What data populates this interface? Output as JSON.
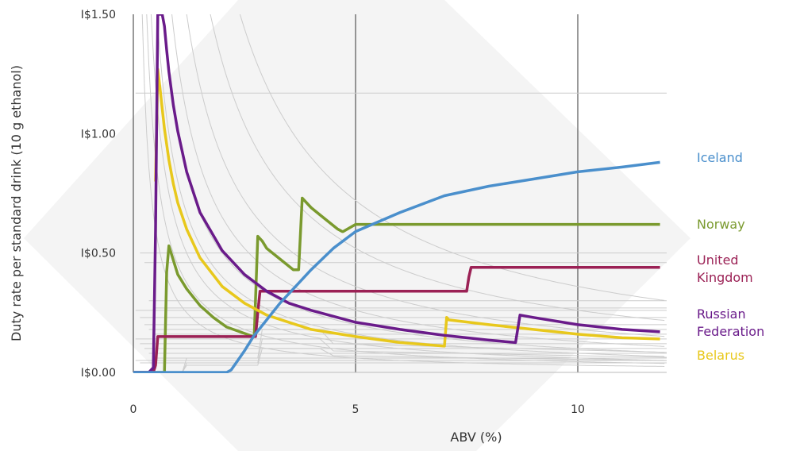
{
  "chart_data": {
    "type": "line",
    "xlabel": "ABV (%)",
    "ylabel": "Duty rate per standard drink (10 g ethanol)",
    "xlim": [
      0,
      12
    ],
    "ylim": [
      0,
      1.5
    ],
    "x_ticks": [
      {
        "value": 0,
        "label": "0"
      },
      {
        "value": 5,
        "label": "5"
      },
      {
        "value": 10,
        "label": "10"
      }
    ],
    "y_ticks": [
      {
        "value": 0,
        "label": "I$0.00"
      },
      {
        "value": 0.5,
        "label": "I$0.50"
      },
      {
        "value": 1.0,
        "label": "I$1.00"
      },
      {
        "value": 1.5,
        "label": "I$1.50"
      }
    ],
    "grid": true,
    "background_series_color": "#cccccc",
    "background_constants": [
      0.3,
      0.45,
      0.6,
      0.8,
      1.0,
      1.3,
      1.8,
      2.6,
      3.6
    ],
    "background_flat_levels": [
      1.17,
      0.5,
      0.46,
      0.3,
      0.27,
      0.26,
      0.23,
      0.2,
      0.18,
      0.16,
      0.14,
      0.12,
      0.1,
      0.08,
      0.06,
      0.05,
      0.04
    ],
    "series": [
      {
        "name": "Iceland",
        "label_lines": [
          "Iceland"
        ],
        "color": "#4a8fcc",
        "x": [
          0,
          2.1,
          2.2,
          2.35,
          2.5,
          2.7,
          3.0,
          3.3,
          3.6,
          4.0,
          4.5,
          5.0,
          5.5,
          6.0,
          7.0,
          8.0,
          9.0,
          10.0,
          11.0,
          11.85
        ],
        "y": [
          0,
          0,
          0.01,
          0.05,
          0.09,
          0.15,
          0.22,
          0.29,
          0.35,
          0.43,
          0.52,
          0.59,
          0.63,
          0.67,
          0.74,
          0.78,
          0.81,
          0.84,
          0.86,
          0.88
        ]
      },
      {
        "name": "Norway",
        "label_lines": [
          "Norway"
        ],
        "color": "#7a9a2e",
        "x": [
          0,
          0.6,
          0.7,
          0.75,
          0.8,
          1.0,
          1.2,
          1.5,
          1.8,
          2.1,
          2.4,
          2.7,
          2.72,
          2.8,
          2.9,
          3.0,
          3.2,
          3.4,
          3.6,
          3.7,
          3.72,
          3.8,
          3.9,
          4.0,
          4.2,
          4.4,
          4.6,
          4.7,
          4.72,
          5.0,
          8.0,
          11.85
        ],
        "y": [
          0,
          0,
          0,
          0.42,
          0.53,
          0.41,
          0.35,
          0.28,
          0.23,
          0.19,
          0.17,
          0.15,
          0.15,
          0.57,
          0.55,
          0.52,
          0.49,
          0.46,
          0.43,
          0.43,
          0.43,
          0.73,
          0.71,
          0.69,
          0.66,
          0.63,
          0.6,
          0.59,
          0.59,
          0.62,
          0.62,
          0.62
        ]
      },
      {
        "name": "United Kingdom",
        "label_lines": [
          "United",
          "Kingdom"
        ],
        "color": "#9b2155",
        "x": [
          0,
          0.45,
          0.5,
          0.55,
          2.75,
          2.8,
          2.85,
          4.0,
          7.5,
          7.55,
          7.6,
          11.85
        ],
        "y": [
          0,
          0,
          0.03,
          0.15,
          0.15,
          0.25,
          0.34,
          0.34,
          0.34,
          0.4,
          0.44,
          0.44
        ]
      },
      {
        "name": "Russian Federation",
        "label_lines": [
          "Russian",
          "Federation"
        ],
        "color": "#6a1b8a",
        "x": [
          0,
          0.35,
          0.4,
          0.45,
          0.5,
          0.55,
          0.6,
          0.65,
          0.7,
          0.75,
          0.8,
          0.9,
          1.0,
          1.2,
          1.5,
          2.0,
          2.5,
          3.0,
          3.5,
          4.0,
          5.0,
          6.0,
          7.0,
          8.0,
          8.6,
          8.7,
          9.0,
          10.0,
          11.0,
          11.85
        ],
        "y": [
          0,
          0,
          0.01,
          0.02,
          0.6,
          1.5,
          1.5,
          1.5,
          1.45,
          1.35,
          1.26,
          1.12,
          1.01,
          0.84,
          0.67,
          0.51,
          0.41,
          0.34,
          0.29,
          0.26,
          0.21,
          0.18,
          0.155,
          0.135,
          0.125,
          0.24,
          0.23,
          0.2,
          0.18,
          0.17
        ]
      },
      {
        "name": "Belarus",
        "label_lines": [
          "Belarus"
        ],
        "color": "#e8c81c",
        "x": [
          0.5,
          0.55,
          0.6,
          0.7,
          0.8,
          0.9,
          1.0,
          1.2,
          1.5,
          2.0,
          2.5,
          3.0,
          3.5,
          4.0,
          5.0,
          6.0,
          7.0,
          7.05,
          7.1,
          8.0,
          9.0,
          10.0,
          11.0,
          11.85
        ],
        "y": [
          0.8,
          1.27,
          1.19,
          1.02,
          0.89,
          0.79,
          0.71,
          0.6,
          0.48,
          0.36,
          0.29,
          0.24,
          0.21,
          0.18,
          0.15,
          0.125,
          0.11,
          0.23,
          0.22,
          0.2,
          0.18,
          0.16,
          0.145,
          0.14
        ]
      }
    ]
  }
}
